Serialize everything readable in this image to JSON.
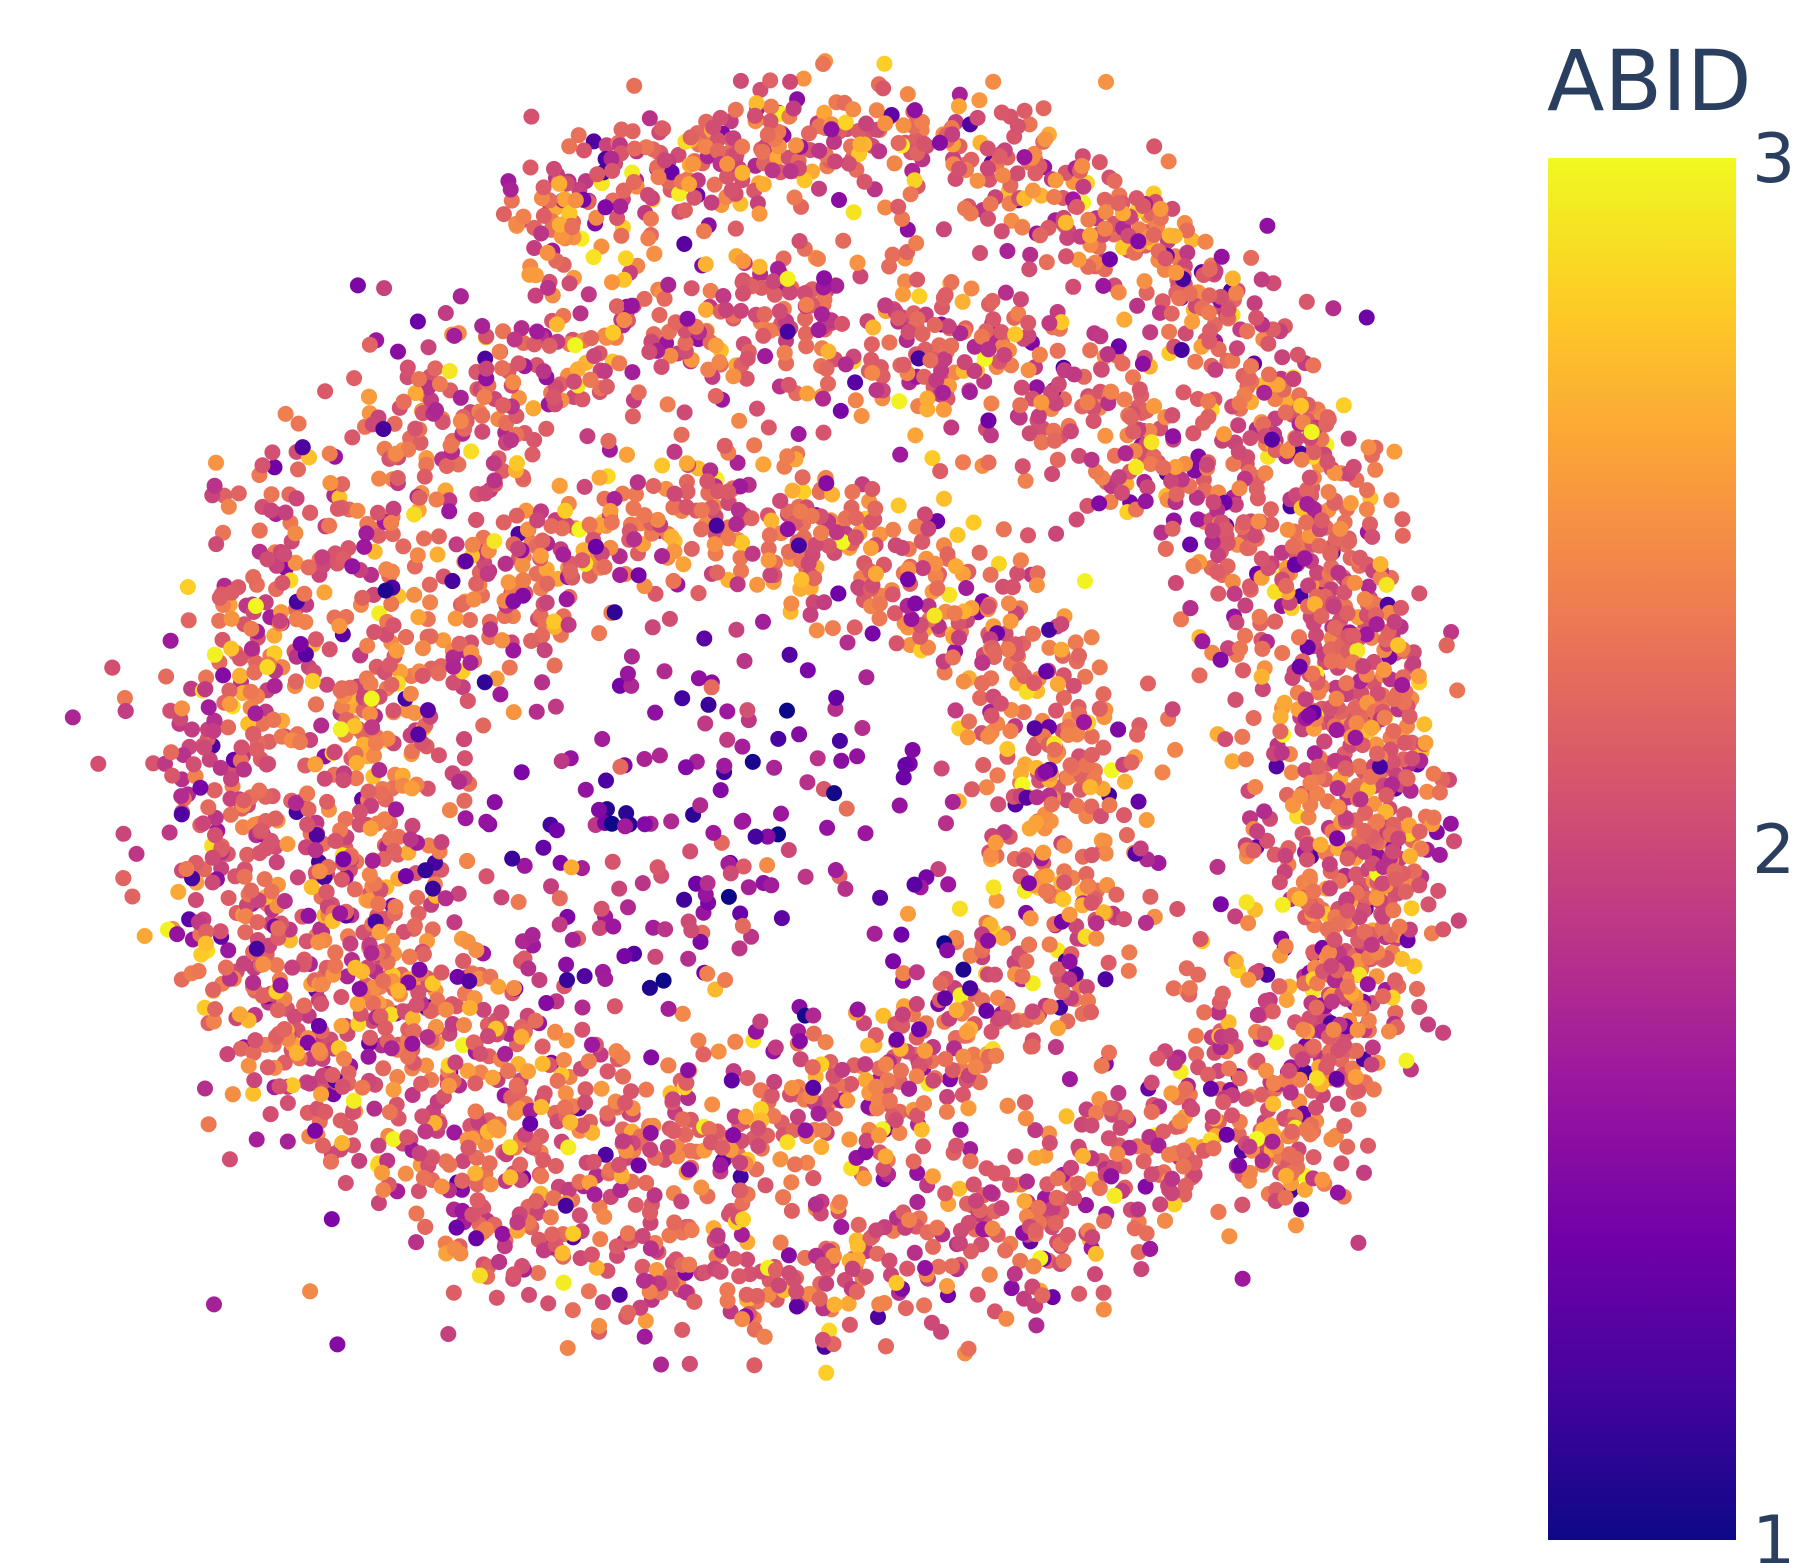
{
  "chart_data": {
    "type": "scatter",
    "title": "",
    "xlabel": "",
    "ylabel": "",
    "axes_visible": false,
    "grid": false,
    "point_color_encoding": "ABID",
    "colorbar": {
      "title": "ABID",
      "colorscale": "plasma",
      "range": [
        1,
        3
      ],
      "tick_labels": [
        "3",
        "2",
        "1"
      ],
      "tick_values": [
        3,
        2,
        1
      ],
      "stops": [
        "#0d0887",
        "#46039f",
        "#7201a8",
        "#9c179e",
        "#bd3786",
        "#d8576b",
        "#ed7953",
        "#fb9f3a",
        "#fdca26",
        "#f0f921"
      ],
      "placement": "right"
    },
    "structure": {
      "description_only": false,
      "outer_ring": {
        "center": [
          0.05,
          -0.05
        ],
        "radius": 4.9,
        "width": 0.9,
        "mean_abid": 2.15
      },
      "inner_ring": {
        "center": [
          -0.6,
          -0.3
        ],
        "radius": 3.0,
        "width": 0.75,
        "mean_abid": 2.25
      },
      "top_arc": {
        "center": [
          0.5,
          0.1
        ],
        "radius": 5.4,
        "width": 0.55,
        "arc_deg": [
          -40,
          125
        ],
        "mean_abid": 2.2
      },
      "interior_scatter": {
        "center": [
          -0.8,
          -0.5
        ],
        "spread": 1.5,
        "mean_abid": 1.7
      }
    }
  }
}
